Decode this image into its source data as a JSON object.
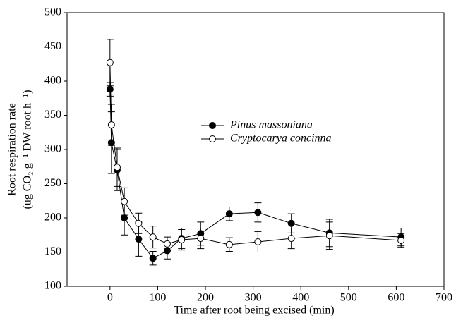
{
  "chart_data": {
    "type": "line",
    "x_label": "Time after root being excised (min)",
    "y_label": [
      "Root respiration rate",
      "(ug CO₂ g⁻¹ DW root h⁻¹)"
    ],
    "x": [
      0,
      3,
      15,
      30,
      60,
      90,
      120,
      150,
      190,
      250,
      310,
      380,
      460,
      610
    ],
    "series": [
      {
        "name": "Pinus massoniana",
        "color": "#000000",
        "filled": true,
        "values": [
          388,
          310,
          270,
          200,
          169,
          141,
          152,
          170,
          177,
          206,
          208,
          192,
          178,
          172
        ],
        "errors": [
          10,
          45,
          30,
          25,
          25,
          10,
          12,
          15,
          17,
          10,
          14,
          14,
          20,
          13
        ]
      },
      {
        "name": "Cryptocarya concinna",
        "color": "#000000",
        "filled": false,
        "values": [
          427,
          336,
          274,
          224,
          192,
          172,
          162,
          168,
          170,
          161,
          165,
          170,
          174,
          167
        ],
        "errors": [
          34,
          30,
          28,
          20,
          15,
          16,
          10,
          15,
          15,
          10,
          15,
          15,
          20,
          10
        ]
      }
    ],
    "xlim": [
      -90,
      700
    ],
    "xticks": [
      0,
      100,
      200,
      300,
      400,
      500,
      600,
      700
    ],
    "ylim": [
      100,
      500
    ],
    "yticks": [
      100,
      150,
      200,
      250,
      300,
      350,
      400,
      450,
      500
    ]
  }
}
